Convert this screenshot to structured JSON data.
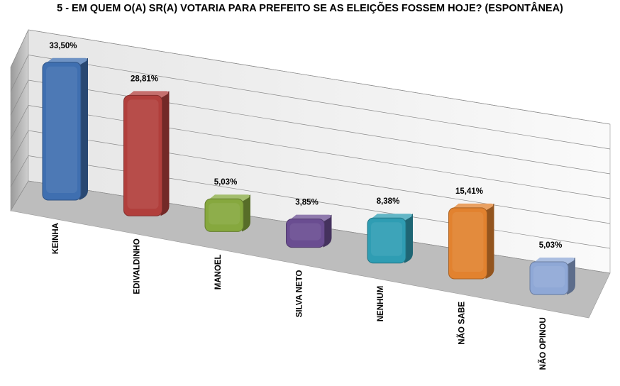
{
  "chart_data": {
    "type": "bar",
    "title": "5 - EM QUEM O(A) SR(A) VOTARIA PARA PREFEITO SE AS ELEIÇÕES FOSSEM HOJE? (ESPONTÂNEA)",
    "categories": [
      "KEINHA",
      "EDIVALDINHO",
      "MANOEL",
      "SILVA NETO",
      "NENHUM",
      "NÃO SABE",
      "NÃO OPINOU"
    ],
    "values": [
      33.5,
      28.81,
      5.03,
      3.85,
      8.38,
      15.41,
      5.03
    ],
    "data_labels": [
      "33,50%",
      "28,81%",
      "5,03%",
      "3,85%",
      "8,38%",
      "15,41%",
      "5,03%"
    ],
    "colors": [
      "#3f6fb0",
      "#b13f3c",
      "#86a83e",
      "#6a4d91",
      "#2f9db3",
      "#e2822f",
      "#8fa8d6"
    ],
    "xlabel": "",
    "ylabel": "",
    "grid": true,
    "legend": "none"
  }
}
